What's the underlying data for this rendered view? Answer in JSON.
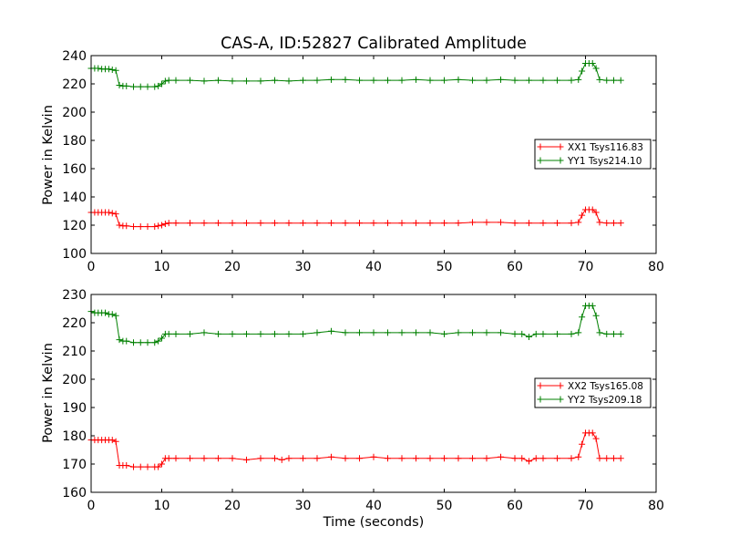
{
  "chart_data": [
    {
      "type": "line",
      "title": "CAS-A, ID:52827 Calibrated Amplitude",
      "xlabel": "",
      "ylabel": "Power in Kelvin",
      "xlim": [
        0,
        80
      ],
      "ylim": [
        100,
        240
      ],
      "xticks": [
        "0",
        "10",
        "20",
        "30",
        "40",
        "50",
        "60",
        "70",
        "80"
      ],
      "yticks": [
        "100",
        "120",
        "140",
        "160",
        "180",
        "200",
        "220",
        "240"
      ],
      "legend_position": "center-right",
      "grid": false,
      "series": [
        {
          "name": "XX1 Tsys116.83",
          "color": "#ff0000",
          "marker": "plus",
          "x": [
            0,
            0.5,
            1,
            1.5,
            2,
            2.5,
            3,
            3.5,
            4,
            4.5,
            5,
            6,
            7,
            8,
            9,
            9.5,
            10,
            10.5,
            11,
            12,
            14,
            16,
            18,
            20,
            22,
            24,
            26,
            28,
            30,
            32,
            34,
            36,
            38,
            40,
            42,
            44,
            46,
            48,
            50,
            52,
            54,
            56,
            58,
            60,
            62,
            64,
            66,
            68,
            69,
            69.5,
            70,
            70.5,
            71,
            71.5,
            72,
            73,
            74,
            75
          ],
          "y": [
            129,
            129,
            129,
            129,
            129,
            129,
            128.5,
            128,
            120,
            119.5,
            119.5,
            119,
            119,
            119,
            119,
            119.5,
            120,
            121,
            121.5,
            121.5,
            121.5,
            121.5,
            121.5,
            121.5,
            121.5,
            121.5,
            121.5,
            121.5,
            121.5,
            121.5,
            121.5,
            121.5,
            121.5,
            121.5,
            121.5,
            121.5,
            121.5,
            121.5,
            121.5,
            121.5,
            122,
            122,
            122,
            121.5,
            121.5,
            121.5,
            121.5,
            121.5,
            122,
            127,
            131,
            131,
            131,
            129,
            122,
            121.5,
            121.5,
            121.5
          ]
        },
        {
          "name": "YY1 Tsys214.10",
          "color": "#008000",
          "marker": "plus",
          "x": [
            0,
            0.5,
            1,
            1.5,
            2,
            2.5,
            3,
            3.5,
            4,
            4.5,
            5,
            6,
            7,
            8,
            9,
            9.5,
            10,
            10.5,
            11,
            12,
            14,
            16,
            18,
            20,
            22,
            24,
            26,
            28,
            30,
            32,
            34,
            36,
            38,
            40,
            42,
            44,
            46,
            48,
            50,
            52,
            54,
            56,
            58,
            60,
            62,
            64,
            66,
            68,
            69,
            69.5,
            70,
            70.5,
            71,
            71.5,
            72,
            73,
            74,
            75
          ],
          "y": [
            231,
            231,
            231,
            230.5,
            230.5,
            230.5,
            230,
            229.5,
            219,
            218.5,
            218.5,
            218,
            218,
            218,
            218,
            218.5,
            220,
            222,
            222.5,
            222.5,
            222.5,
            222,
            222.5,
            222,
            222,
            222,
            222.5,
            222,
            222.5,
            222.5,
            223,
            223,
            222.5,
            222.5,
            222.5,
            222.5,
            223,
            222.5,
            222.5,
            223,
            222.5,
            222.5,
            223,
            222.5,
            222.5,
            222.5,
            222.5,
            222.5,
            223,
            229,
            234.5,
            234.5,
            234.5,
            231,
            223,
            222.5,
            222.5,
            222.5
          ]
        }
      ]
    },
    {
      "type": "line",
      "title": "",
      "xlabel": "Time (seconds)",
      "ylabel": "Power in Kelvin",
      "xlim": [
        0,
        80
      ],
      "ylim": [
        160,
        230
      ],
      "xticks": [
        "0",
        "10",
        "20",
        "30",
        "40",
        "50",
        "60",
        "70",
        "80"
      ],
      "yticks": [
        "160",
        "170",
        "180",
        "190",
        "200",
        "210",
        "220",
        "230"
      ],
      "legend_position": "center-right",
      "grid": false,
      "series": [
        {
          "name": "XX2 Tsys165.08",
          "color": "#ff0000",
          "marker": "plus",
          "x": [
            0,
            0.5,
            1,
            1.5,
            2,
            2.5,
            3,
            3.5,
            4,
            4.5,
            5,
            6,
            7,
            8,
            9,
            9.5,
            10,
            10.5,
            11,
            12,
            14,
            16,
            18,
            20,
            22,
            24,
            26,
            27,
            28,
            30,
            32,
            34,
            36,
            38,
            40,
            42,
            44,
            46,
            48,
            50,
            52,
            54,
            56,
            58,
            60,
            61,
            62,
            63,
            64,
            66,
            68,
            69,
            69.5,
            70,
            70.5,
            71,
            71.5,
            72,
            73,
            74,
            75
          ],
          "y": [
            178.5,
            178.5,
            178.5,
            178.5,
            178.5,
            178.5,
            178.5,
            178,
            169.5,
            169.5,
            169.5,
            169,
            169,
            169,
            169,
            169,
            170,
            172,
            172,
            172,
            172,
            172,
            172,
            172,
            171.5,
            172,
            172,
            171.5,
            172,
            172,
            172,
            172.5,
            172,
            172,
            172.5,
            172,
            172,
            172,
            172,
            172,
            172,
            172,
            172,
            172.5,
            172,
            172,
            171,
            172,
            172,
            172,
            172,
            172.5,
            177,
            181,
            181,
            181,
            179,
            172,
            172,
            172,
            172
          ]
        },
        {
          "name": "YY2 Tsys209.18",
          "color": "#008000",
          "marker": "plus",
          "x": [
            0,
            0.5,
            1,
            1.5,
            2,
            2.5,
            3,
            3.5,
            4,
            4.5,
            5,
            6,
            7,
            8,
            9,
            9.5,
            10,
            10.5,
            11,
            12,
            14,
            16,
            18,
            20,
            22,
            24,
            26,
            28,
            30,
            32,
            34,
            36,
            38,
            40,
            42,
            44,
            46,
            48,
            50,
            52,
            54,
            56,
            58,
            60,
            61,
            62,
            63,
            64,
            66,
            68,
            69,
            69.5,
            70,
            70.5,
            71,
            71.5,
            72,
            73,
            74,
            75
          ],
          "y": [
            224,
            223.5,
            223.5,
            223.5,
            223.5,
            223,
            223,
            222.5,
            214,
            213.5,
            213.5,
            213,
            213,
            213,
            213,
            213.5,
            214.5,
            216,
            216,
            216,
            216,
            216.5,
            216,
            216,
            216,
            216,
            216,
            216,
            216,
            216.5,
            217,
            216.5,
            216.5,
            216.5,
            216.5,
            216.5,
            216.5,
            216.5,
            216,
            216.5,
            216.5,
            216.5,
            216.5,
            216,
            216,
            215,
            216,
            216,
            216,
            216,
            216.5,
            222,
            226,
            226,
            226,
            222.5,
            216.5,
            216,
            216,
            216
          ]
        }
      ]
    }
  ]
}
